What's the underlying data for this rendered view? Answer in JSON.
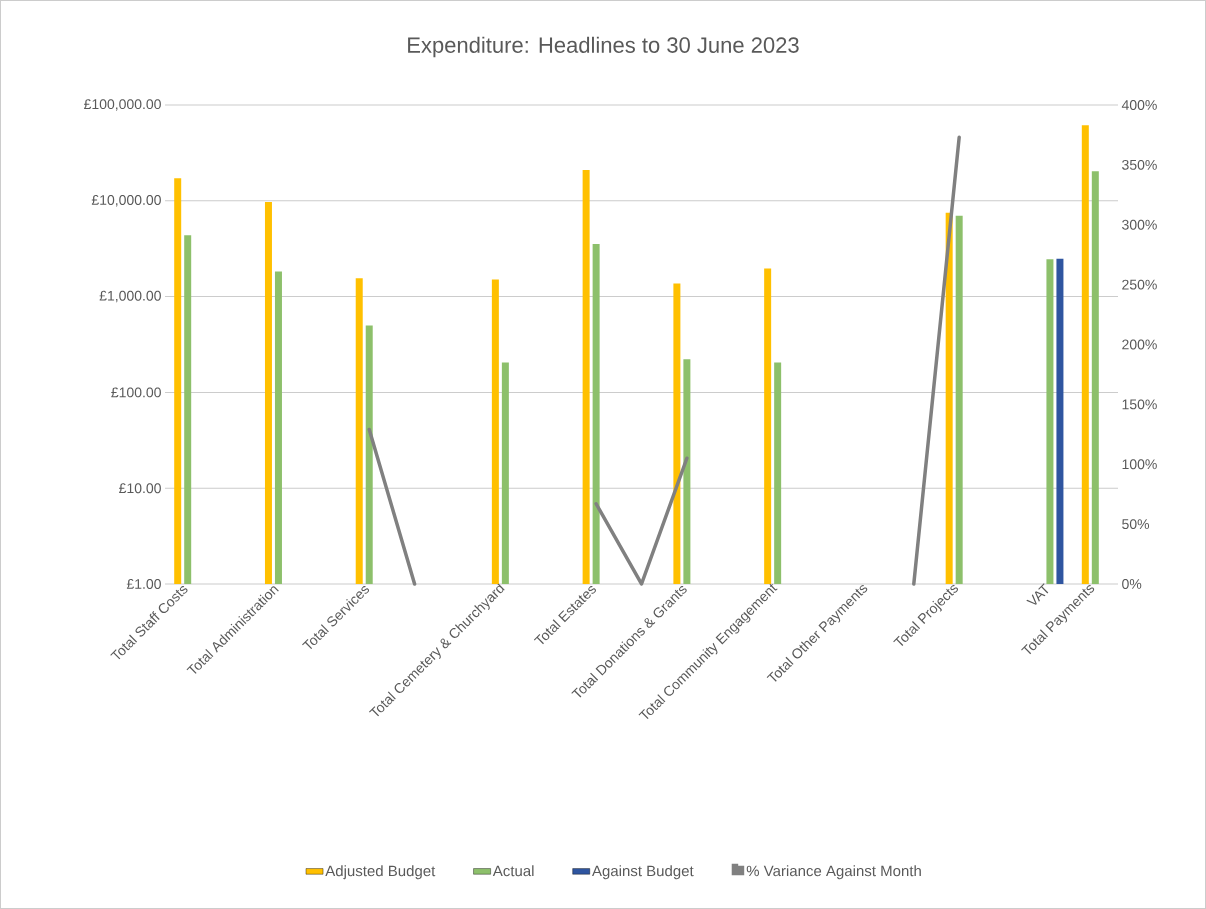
{
  "chart_data": {
    "type": "bar",
    "title": "Expenditure: Headlines to 30 June 2023",
    "categories": [
      "Total Staff Costs",
      null,
      "Total Administration",
      null,
      "Total Services",
      null,
      null,
      "Total Cemetery & Churchyard",
      null,
      "Total Estates",
      null,
      "Total Donations & Grants",
      null,
      "Total Community Engagement",
      null,
      "Total Other Payments",
      null,
      "Total Projects",
      null,
      "VAT",
      "Total Payments"
    ],
    "series": [
      {
        "name": "Adjusted Budget",
        "color": "#ffc000",
        "values": [
          17200,
          null,
          9700,
          null,
          1550,
          null,
          null,
          1510,
          null,
          21000,
          null,
          1370,
          null,
          1960,
          null,
          null,
          null,
          7500,
          null,
          null,
          61500
        ]
      },
      {
        "name": "Actual",
        "color": "#8dc06b",
        "values": [
          4370,
          null,
          1830,
          null,
          500,
          null,
          null,
          205,
          null,
          3530,
          null,
          222,
          null,
          205,
          null,
          null,
          null,
          7000,
          null,
          2450,
          20300
        ]
      },
      {
        "name": "Against Budget",
        "color": "#2f55a0",
        "values": [
          null,
          null,
          null,
          null,
          null,
          null,
          null,
          null,
          null,
          null,
          null,
          null,
          null,
          null,
          null,
          null,
          null,
          null,
          null,
          2480,
          null
        ]
      },
      {
        "name": "% Variance Against Month",
        "color": "#808080",
        "type": "line",
        "axis": "y2",
        "values": [
          null,
          null,
          null,
          null,
          129,
          0,
          null,
          null,
          null,
          67,
          0,
          105,
          null,
          null,
          null,
          null,
          0,
          373,
          null,
          null,
          null
        ]
      }
    ],
    "log": "y",
    "ylim": [
      1,
      100000
    ],
    "yticks": [
      {
        "value": 1,
        "label": "£1.00"
      },
      {
        "value": 10,
        "label": "£10.00"
      },
      {
        "value": 100,
        "label": "£100.00"
      },
      {
        "value": 1000,
        "label": "£1,000.00"
      },
      {
        "value": 10000,
        "label": "£10,000.00"
      },
      {
        "value": 100000,
        "label": "£100,000.00"
      }
    ],
    "y2lim": [
      0,
      400
    ],
    "y2ticks": [
      {
        "value": 0,
        "label": "0%"
      },
      {
        "value": 50,
        "label": "50%"
      },
      {
        "value": 100,
        "label": "100%"
      },
      {
        "value": 150,
        "label": "150%"
      },
      {
        "value": 200,
        "label": "200%"
      },
      {
        "value": 250,
        "label": "250%"
      },
      {
        "value": 300,
        "label": "300%"
      },
      {
        "value": 350,
        "label": "350%"
      },
      {
        "value": 400,
        "label": "400%"
      }
    ],
    "grid": "y",
    "legend": "bottom"
  }
}
